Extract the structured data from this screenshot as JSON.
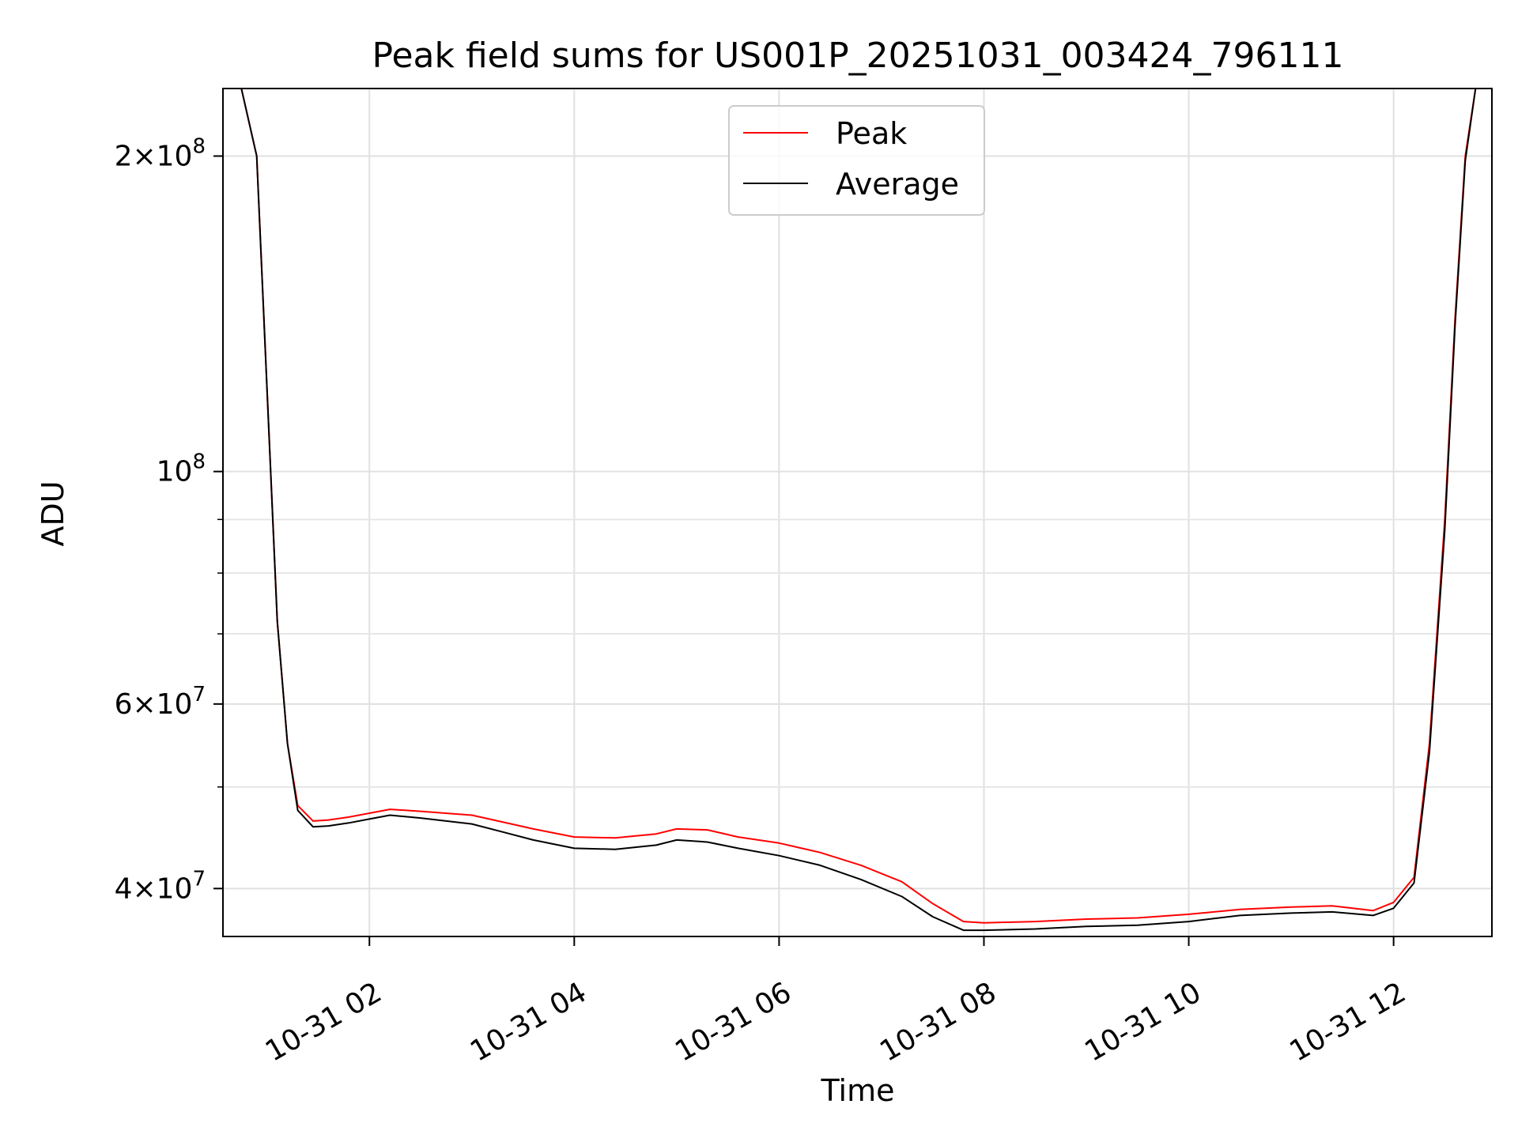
{
  "chart_data": {
    "type": "line",
    "title": "Peak field sums for US001P_20251031_003424_796111",
    "xlabel": "Time",
    "ylabel": "ADU",
    "yscale": "log",
    "ylim": [
      36000000,
      232000000
    ],
    "xlim_hours": [
      0.57,
      12.96
    ],
    "grid": true,
    "legend_position": "top-center",
    "x_ticks": [
      {
        "value": 2,
        "label": "10-31 02"
      },
      {
        "value": 4,
        "label": "10-31 04"
      },
      {
        "value": 6,
        "label": "10-31 06"
      },
      {
        "value": 8,
        "label": "10-31 08"
      },
      {
        "value": 10,
        "label": "10-31 10"
      },
      {
        "value": 12,
        "label": "10-31 12"
      }
    ],
    "y_major_ticks": [
      {
        "value": 40000000,
        "mant": "4",
        "exp": "7"
      },
      {
        "value": 60000000,
        "mant": "6",
        "exp": "7"
      },
      {
        "value": 100000000,
        "mant": "",
        "exp": "8"
      },
      {
        "value": 200000000,
        "mant": "2",
        "exp": "8"
      }
    ],
    "y_minor_ticks": [
      50000000,
      70000000,
      80000000,
      90000000
    ],
    "series": [
      {
        "name": "Peak",
        "color": "#ff0000",
        "x_hours": [
          0.57,
          0.75,
          0.9,
          1.0,
          1.1,
          1.2,
          1.3,
          1.45,
          1.6,
          1.8,
          2.0,
          2.2,
          2.5,
          3.0,
          3.3,
          3.6,
          4.0,
          4.4,
          4.8,
          5.0,
          5.3,
          5.6,
          6.0,
          6.4,
          6.8,
          7.2,
          7.5,
          7.8,
          8.0,
          8.5,
          9.0,
          9.5,
          10.0,
          10.5,
          11.0,
          11.4,
          11.8,
          12.0,
          12.2,
          12.35,
          12.5,
          12.6,
          12.7,
          12.8,
          12.96
        ],
        "values": [
          232000000,
          232000000,
          200000000,
          120000000,
          72000000,
          55000000,
          48000000,
          46400000,
          46500000,
          46800000,
          47200000,
          47600000,
          47400000,
          47000000,
          46300000,
          45600000,
          44800000,
          44700000,
          45100000,
          45600000,
          45500000,
          44800000,
          44200000,
          43300000,
          42100000,
          40600000,
          38700000,
          37200000,
          37100000,
          37200000,
          37400000,
          37500000,
          37800000,
          38200000,
          38400000,
          38500000,
          38100000,
          38800000,
          41000000,
          55000000,
          90000000,
          140000000,
          200000000,
          232000000,
          232000000
        ]
      },
      {
        "name": "Average",
        "color": "#000000",
        "x_hours": [
          0.57,
          0.75,
          0.9,
          1.0,
          1.1,
          1.2,
          1.3,
          1.45,
          1.6,
          1.8,
          2.0,
          2.2,
          2.5,
          3.0,
          3.3,
          3.6,
          4.0,
          4.4,
          4.8,
          5.0,
          5.3,
          5.6,
          6.0,
          6.4,
          6.8,
          7.2,
          7.5,
          7.8,
          8.0,
          8.5,
          9.0,
          9.5,
          10.0,
          10.5,
          11.0,
          11.4,
          11.8,
          12.0,
          12.2,
          12.35,
          12.5,
          12.6,
          12.7,
          12.8,
          12.96
        ],
        "values": [
          232000000,
          232000000,
          200000000,
          120000000,
          72000000,
          55000000,
          47500000,
          45800000,
          45900000,
          46200000,
          46600000,
          47000000,
          46700000,
          46100000,
          45300000,
          44500000,
          43700000,
          43600000,
          44000000,
          44500000,
          44300000,
          43700000,
          43000000,
          42100000,
          40800000,
          39300000,
          37600000,
          36500000,
          36500000,
          36600000,
          36800000,
          36900000,
          37200000,
          37700000,
          37900000,
          38000000,
          37700000,
          38300000,
          40500000,
          54000000,
          88000000,
          138000000,
          198000000,
          232000000,
          232000000
        ]
      }
    ]
  }
}
